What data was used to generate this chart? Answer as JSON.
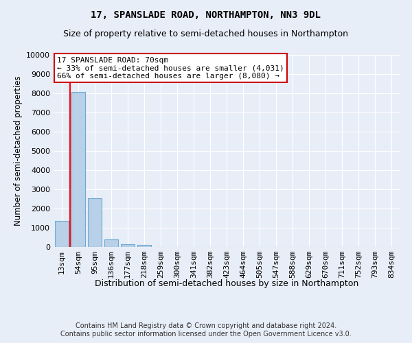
{
  "title1": "17, SPANSLADE ROAD, NORTHAMPTON, NN3 9DL",
  "title2": "Size of property relative to semi-detached houses in Northampton",
  "xlabel": "Distribution of semi-detached houses by size in Northampton",
  "ylabel": "Number of semi-detached properties",
  "footer": "Contains HM Land Registry data © Crown copyright and database right 2024.\nContains public sector information licensed under the Open Government Licence v3.0.",
  "categories": [
    "13sqm",
    "54sqm",
    "95sqm",
    "136sqm",
    "177sqm",
    "218sqm",
    "259sqm",
    "300sqm",
    "341sqm",
    "382sqm",
    "423sqm",
    "464sqm",
    "505sqm",
    "547sqm",
    "588sqm",
    "629sqm",
    "670sqm",
    "711sqm",
    "752sqm",
    "793sqm",
    "834sqm"
  ],
  "values": [
    1350,
    8080,
    2550,
    400,
    130,
    100,
    0,
    0,
    0,
    0,
    0,
    0,
    0,
    0,
    0,
    0,
    0,
    0,
    0,
    0,
    0
  ],
  "bar_color": "#b8d0e8",
  "bar_edgecolor": "#6aaad4",
  "red_line_x": 0.5,
  "property_label": "17 SPANSLADE ROAD: 70sqm",
  "pct_smaller": "33% of semi-detached houses are smaller (4,031)",
  "pct_larger": "66% of semi-detached houses are larger (8,080)",
  "arrow_left": "← ",
  "arrow_right": " →",
  "ylim": [
    0,
    10000
  ],
  "yticks": [
    0,
    1000,
    2000,
    3000,
    4000,
    5000,
    6000,
    7000,
    8000,
    9000,
    10000
  ],
  "background_color": "#e8eef8",
  "box_facecolor": "#ffffff",
  "box_edgecolor": "#cc0000",
  "title1_fontsize": 10,
  "title2_fontsize": 9,
  "xlabel_fontsize": 9,
  "ylabel_fontsize": 8.5,
  "tick_fontsize": 8,
  "annotation_fontsize": 8,
  "footer_fontsize": 7
}
